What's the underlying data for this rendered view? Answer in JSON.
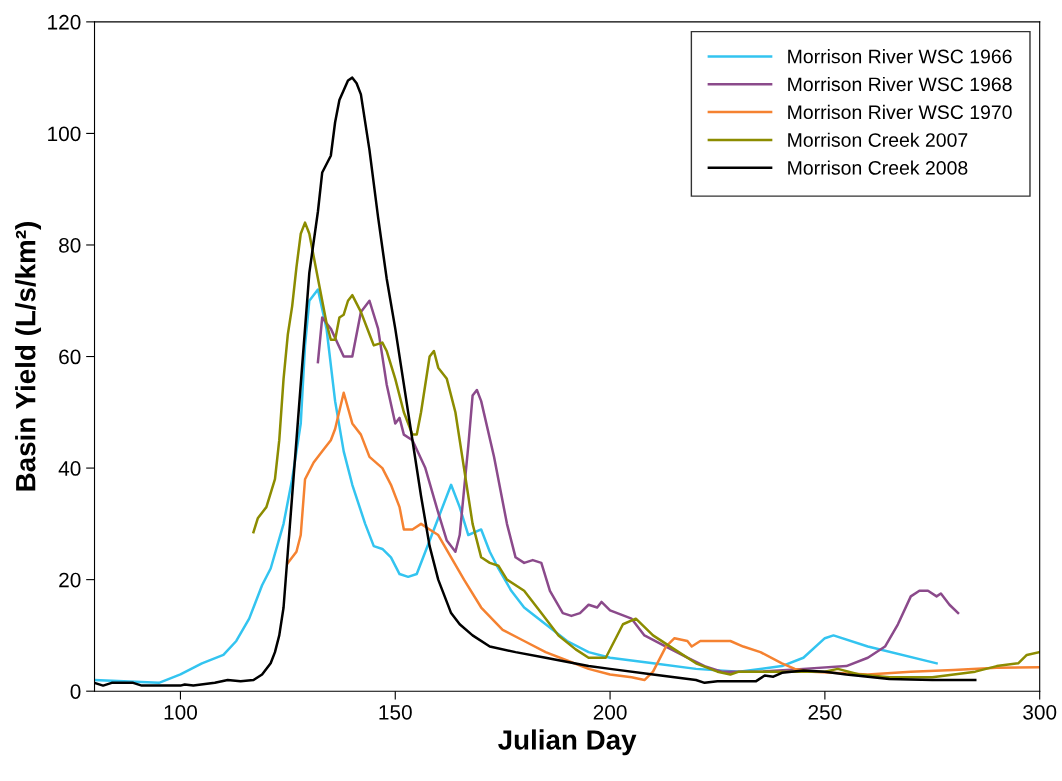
{
  "chart_data": {
    "type": "line",
    "xlabel": "Julian Day",
    "ylabel": "Basin Yield (L/s/km²)",
    "xlim": [
      80,
      300
    ],
    "xticks": [
      100,
      150,
      200,
      250,
      300
    ],
    "ylim": [
      0,
      120
    ],
    "yticks": [
      0,
      20,
      40,
      60,
      80,
      100,
      120
    ],
    "grid": false,
    "legend": "top right",
    "marker": "none",
    "line_style": "solid",
    "series": [
      {
        "name": "Morrison River WSC 1966",
        "color": "#33c4f0",
        "x": [
          80,
          95,
          100,
          105,
          110,
          113,
          116,
          119,
          121,
          124,
          126,
          128,
          129,
          130,
          132,
          134,
          136,
          138,
          140,
          143,
          145,
          147,
          149,
          151,
          153,
          155,
          157,
          160,
          163,
          165,
          167,
          170,
          172,
          174,
          177,
          180,
          185,
          190,
          195,
          200,
          210,
          220,
          230,
          240,
          245,
          250,
          252,
          260,
          276
        ],
        "values": [
          2,
          1.5,
          3,
          5,
          6.5,
          9,
          13,
          19,
          22,
          30,
          38,
          48,
          62,
          70,
          72,
          65,
          52,
          43,
          37,
          30,
          26,
          25.5,
          24,
          21,
          20.5,
          21,
          25,
          31,
          37,
          33,
          28,
          29,
          25,
          22,
          18,
          15,
          12,
          9,
          7,
          6,
          5,
          4,
          3.5,
          4.5,
          6,
          9.5,
          10,
          8,
          5
        ]
      },
      {
        "name": "Morrison River WSC 1968",
        "color": "#8b4a8b",
        "x": [
          132,
          133,
          135,
          138,
          140,
          142,
          144,
          146,
          148,
          150,
          151,
          152,
          154,
          157,
          160,
          162,
          164,
          165,
          167,
          168,
          169,
          170,
          173,
          176,
          178,
          180,
          182,
          184,
          186,
          189,
          191,
          193,
          195,
          197,
          198,
          200,
          205,
          208,
          213,
          218,
          222,
          226,
          235,
          245,
          255,
          260,
          264,
          267,
          270,
          272,
          274,
          276,
          277,
          279,
          281
        ],
        "values": [
          59,
          67,
          65,
          60,
          60,
          68,
          70,
          65,
          55,
          48,
          49,
          46,
          45,
          40,
          32,
          27,
          25,
          28,
          44,
          53,
          54,
          52,
          42,
          30,
          24,
          23,
          23.5,
          23,
          18,
          14,
          13.5,
          14,
          15.5,
          15,
          16,
          14.5,
          13,
          10,
          8,
          6,
          4.5,
          3.5,
          3.5,
          4,
          4.5,
          6,
          8,
          12,
          17,
          18,
          18,
          17,
          17.5,
          15.5,
          14
        ]
      },
      {
        "name": "Morrison River WSC 1970",
        "color": "#f58231",
        "x": [
          125,
          127,
          128,
          129,
          131,
          133,
          135,
          136,
          138,
          140,
          142,
          144,
          147,
          149,
          151,
          152,
          154,
          156,
          158,
          160,
          163,
          166,
          170,
          175,
          180,
          185,
          190,
          195,
          200,
          205,
          208,
          210,
          213,
          215,
          218,
          219,
          221,
          228,
          231,
          235,
          240,
          243,
          247,
          260,
          270,
          280,
          290,
          300
        ],
        "values": [
          23,
          25,
          28,
          38,
          41,
          43,
          45,
          47,
          53.5,
          48,
          46,
          42,
          40,
          37,
          33,
          29,
          29,
          30,
          29,
          28,
          24,
          20,
          15,
          11,
          9,
          7,
          5.5,
          4,
          3,
          2.5,
          2,
          3.5,
          8,
          9.5,
          9,
          8,
          9,
          9,
          8,
          7,
          5,
          4,
          3.5,
          3,
          3.5,
          3.8,
          4.2,
          4.3
        ]
      },
      {
        "name": "Morrison Creek 2007",
        "color": "#8c8c00",
        "x": [
          117,
          118,
          120,
          122,
          123,
          124,
          125,
          126,
          127,
          128,
          129,
          130,
          132,
          134,
          135,
          136,
          137,
          138,
          139,
          140,
          142,
          144,
          145,
          147,
          148,
          150,
          152,
          154,
          155,
          156,
          158,
          159,
          160,
          162,
          164,
          166,
          168,
          170,
          172,
          174,
          176,
          180,
          184,
          188,
          192,
          195,
          199,
          201,
          203,
          206,
          210,
          215,
          220,
          225,
          228,
          230,
          240,
          250,
          253,
          258,
          265,
          275,
          285,
          290,
          295,
          297,
          300
        ],
        "values": [
          28.5,
          31,
          33,
          38,
          45,
          56,
          64,
          69,
          76,
          82,
          84,
          82,
          74,
          66,
          63,
          63,
          67,
          67.5,
          70,
          71,
          68,
          64,
          62,
          62.5,
          61,
          56,
          50,
          46,
          46,
          50,
          60,
          61,
          58,
          56,
          50,
          40,
          30,
          24,
          23,
          22.5,
          20,
          18,
          14,
          10,
          7.5,
          6,
          6,
          9,
          12,
          13,
          10,
          7.5,
          5,
          3.5,
          3,
          3.5,
          3.5,
          3.5,
          4,
          3,
          2.5,
          2.5,
          3.5,
          4.5,
          5,
          6.5,
          7
        ]
      },
      {
        "name": "Morrison Creek 2008",
        "color": "#000000",
        "x": [
          80,
          82,
          84,
          86,
          89,
          91,
          100,
          101,
          103,
          108,
          111,
          114,
          117,
          119,
          121,
          122,
          123,
          124,
          125,
          126,
          127,
          128,
          129,
          130,
          132,
          133,
          135,
          136,
          137,
          139,
          140,
          141,
          142,
          144,
          146,
          148,
          150,
          152,
          154,
          156,
          158,
          160,
          163,
          165,
          168,
          172,
          178,
          185,
          195,
          200,
          210,
          215,
          220,
          222,
          225,
          230,
          234,
          236,
          238,
          240,
          245,
          250,
          255,
          265,
          275,
          280,
          285
        ],
        "values": [
          1.5,
          1,
          1.5,
          1.5,
          1.5,
          1,
          1,
          1.2,
          1,
          1.5,
          2,
          1.8,
          2,
          3,
          5,
          7,
          10,
          15,
          25,
          35,
          45,
          55,
          65,
          75,
          86,
          93,
          96,
          102,
          106,
          109.5,
          110,
          109,
          107,
          97,
          85,
          74,
          65,
          55,
          45,
          35,
          26,
          20,
          14,
          12,
          10,
          8,
          7,
          6,
          4.5,
          4,
          3,
          2.5,
          2,
          1.5,
          1.8,
          1.8,
          1.8,
          2.8,
          2.6,
          3.3,
          3.7,
          3.5,
          3,
          2.2,
          2,
          2,
          2
        ]
      }
    ]
  }
}
